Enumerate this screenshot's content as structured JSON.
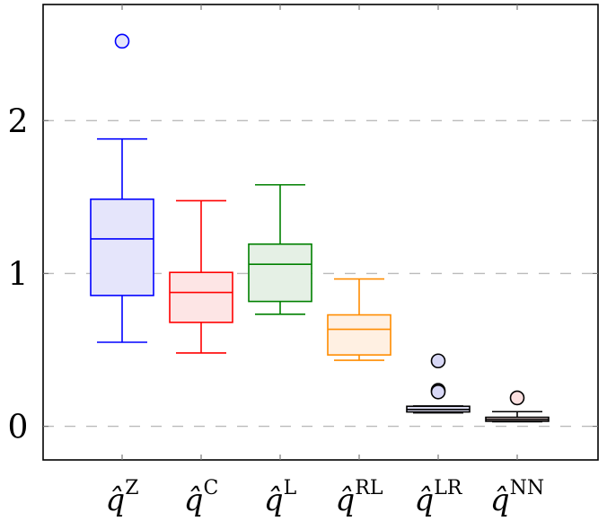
{
  "chart_data": {
    "type": "boxplot",
    "title": "",
    "xlabel": "",
    "ylabel": "",
    "ylim": [
      -0.22,
      2.76
    ],
    "yticks": [
      0,
      1,
      2
    ],
    "ytick_labels": [
      "0",
      "1",
      "2"
    ],
    "grid": "horizontal dashed",
    "categories": [
      {
        "symbol": "q̂",
        "sup": "Z"
      },
      {
        "symbol": "q̂",
        "sup": "C"
      },
      {
        "symbol": "q̂",
        "sup": "L"
      },
      {
        "symbol": "q̂",
        "sup": "RL"
      },
      {
        "symbol": "q̂",
        "sup": "LR"
      },
      {
        "symbol": "q̂",
        "sup": "NN"
      }
    ],
    "series": [
      {
        "name": "Z",
        "color": "#0000ff",
        "fill": "#e5e5fb",
        "lower_whisker": 0.55,
        "q1": 0.856,
        "median": 1.226,
        "q3": 1.486,
        "upper_whisker": 1.88,
        "outliers": [
          2.52
        ],
        "outlier_fill": "#e5e5fb"
      },
      {
        "name": "C",
        "color": "#ff0000",
        "fill": "#fde5e5",
        "lower_whisker": 0.48,
        "q1": 0.68,
        "median": 0.876,
        "q3": 1.007,
        "upper_whisker": 1.476,
        "outliers": []
      },
      {
        "name": "L",
        "color": "#008000",
        "fill": "#e5f0e5",
        "lower_whisker": 0.733,
        "q1": 0.817,
        "median": 1.06,
        "q3": 1.192,
        "upper_whisker": 1.58,
        "outliers": []
      },
      {
        "name": "RL",
        "color": "#ff8c00",
        "fill": "#fff0e2",
        "lower_whisker": 0.432,
        "q1": 0.467,
        "median": 0.635,
        "q3": 0.729,
        "upper_whisker": 0.964,
        "outliers": []
      },
      {
        "name": "LR",
        "color": "#000000",
        "fill": "#e5e5fb",
        "lower_whisker": 0.088,
        "q1": 0.094,
        "median": 0.11,
        "q3": 0.131,
        "upper_whisker": 0.133,
        "outliers": [
          0.428,
          0.235,
          0.225
        ],
        "outlier_fill": "#d8d8f6"
      },
      {
        "name": "NN",
        "color": "#000000",
        "fill": "#fde5e5",
        "lower_whisker": 0.03,
        "q1": 0.033,
        "median": 0.045,
        "q3": 0.059,
        "upper_whisker": 0.096,
        "outliers": [
          0.186
        ],
        "outlier_fill": "#fbe0e0"
      }
    ]
  }
}
